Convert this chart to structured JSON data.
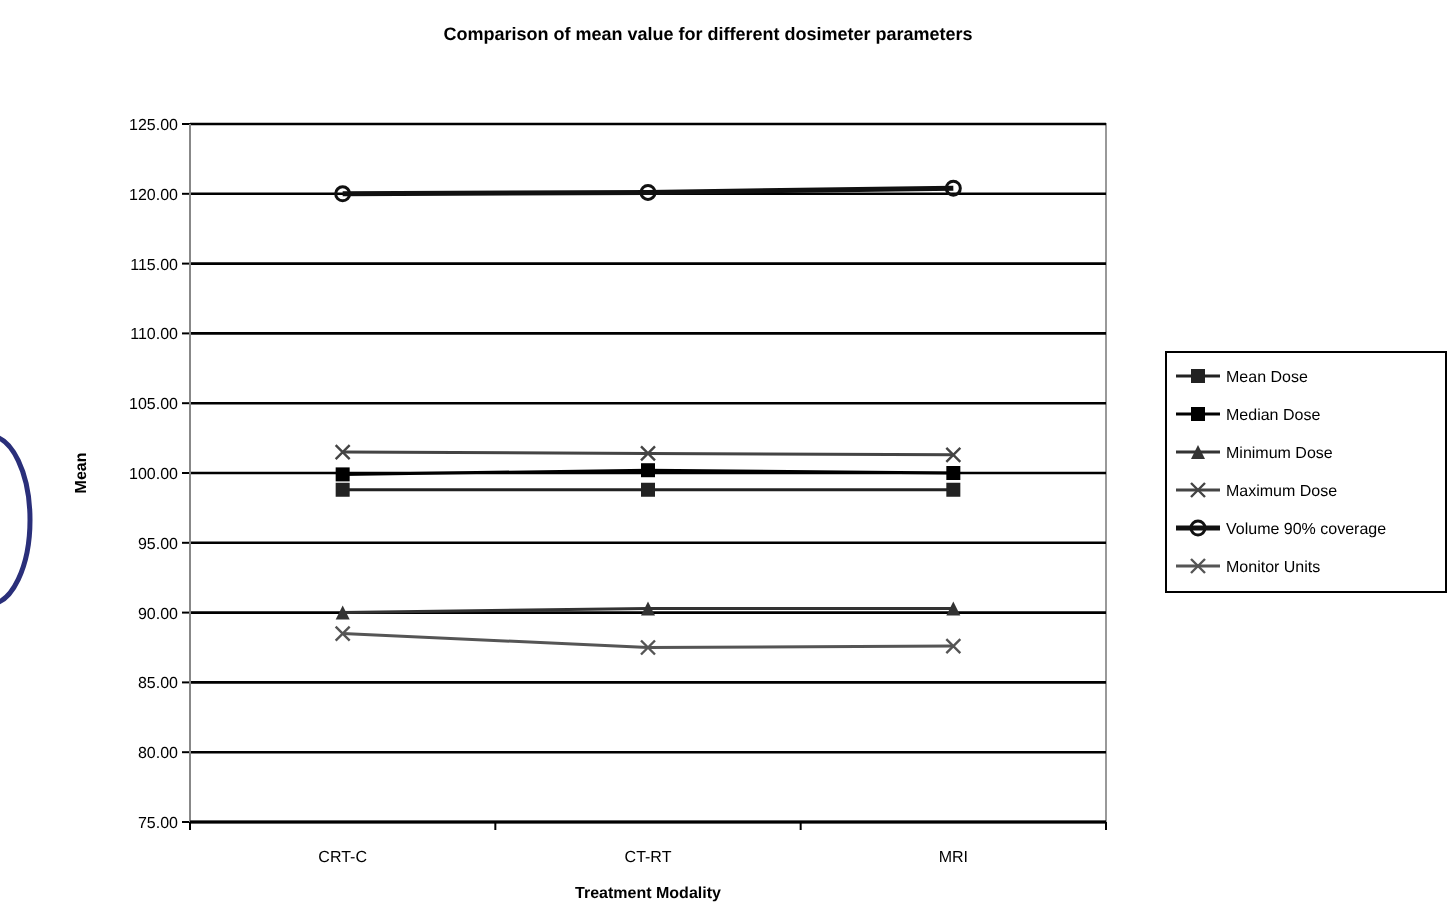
{
  "chart_data": {
    "type": "line",
    "title": "Comparison of mean value for different dosimeter parameters",
    "xlabel": "Treatment Modality",
    "ylabel": "Mean",
    "categories": [
      "CRT-C",
      "CT-RT",
      "MRI"
    ],
    "series": [
      {
        "name": "Mean Dose",
        "color": "#222222",
        "values": [
          98.8,
          98.8,
          98.8
        ],
        "marker": "square"
      },
      {
        "name": "Median Dose",
        "color": "#000000",
        "values": [
          99.9,
          100.2,
          100
        ],
        "marker": "square"
      },
      {
        "name": "Minimum Dose",
        "color": "#333333",
        "values": [
          90,
          90.3,
          90.3
        ],
        "marker": "triangle"
      },
      {
        "name": "Maximum Dose",
        "color": "#444444",
        "values": [
          101.5,
          101.4,
          101.3
        ],
        "marker": "cross"
      },
      {
        "name": "Volume 90% coverage",
        "color": "#111111",
        "values": [
          120,
          120.1,
          120.4
        ],
        "marker": "circle"
      },
      {
        "name": "Monitor Units",
        "color": "#555555",
        "values": [
          88.5,
          87.5,
          87.6
        ],
        "marker": "cross"
      }
    ],
    "ylim": [
      75,
      125
    ],
    "yticks": [
      {
        "value": 75,
        "label": "75.00"
      },
      {
        "value": 80,
        "label": "80.00"
      },
      {
        "value": 85,
        "label": "85.00"
      },
      {
        "value": 90,
        "label": "90.00"
      },
      {
        "value": 95,
        "label": "95.00"
      },
      {
        "value": 100,
        "label": "100.00"
      },
      {
        "value": 105,
        "label": "105.00"
      },
      {
        "value": 110,
        "label": "110.00"
      },
      {
        "value": 115,
        "label": "115.00"
      },
      {
        "value": 120,
        "label": "120.00"
      },
      {
        "value": 125,
        "label": "125.00"
      }
    ],
    "grid": "y",
    "legend": "right"
  }
}
